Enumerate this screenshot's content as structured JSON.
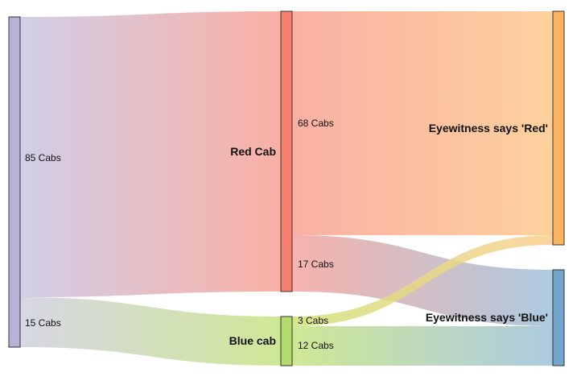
{
  "diagram": {
    "type": "sankey",
    "nodes": {
      "source": {
        "label": "",
        "color": "#b7b3d8"
      },
      "red_cab": {
        "label": "Red Cab",
        "color": "#f77f6e"
      },
      "blue_cab": {
        "label": "Blue cab",
        "color": "#b3db6e"
      },
      "says_red": {
        "label": "Eyewitness says 'Red'",
        "color": "#fdb462"
      },
      "says_blue": {
        "label": "Eyewitness says 'Blue'",
        "color": "#72a6ca"
      }
    },
    "flows": [
      {
        "id": "src-red",
        "from": "source",
        "to": "red_cab",
        "value": 85,
        "label": "85 Cabs"
      },
      {
        "id": "src-blue",
        "from": "source",
        "to": "blue_cab",
        "value": 15,
        "label": "15 Cabs"
      },
      {
        "id": "red-red",
        "from": "red_cab",
        "to": "says_red",
        "value": 68,
        "label": "68 Cabs"
      },
      {
        "id": "red-blue",
        "from": "red_cab",
        "to": "says_blue",
        "value": 17,
        "label": "17 Cabs"
      },
      {
        "id": "blue-red",
        "from": "blue_cab",
        "to": "says_red",
        "value": 3,
        "label": "3 Cabs"
      },
      {
        "id": "blue-blue",
        "from": "blue_cab",
        "to": "says_blue",
        "value": 12,
        "label": "12 Cabs"
      }
    ]
  }
}
